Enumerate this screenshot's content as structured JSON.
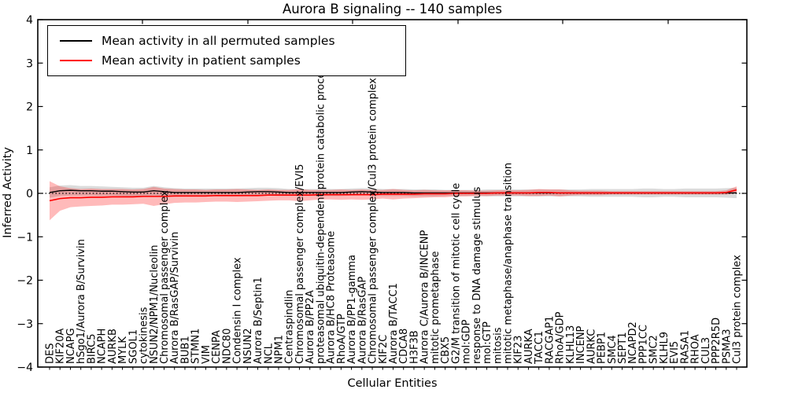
{
  "figure": {
    "title": "Aurora B signaling -- 140 samples",
    "xlabel": "Cellular Entities",
    "ylabel": "Inferred Activity"
  },
  "legend": {
    "items": [
      {
        "label": "Mean activity in all permuted samples",
        "color": "#000000"
      },
      {
        "label": "Mean activity in patient samples",
        "color": "#ff0000"
      }
    ]
  },
  "chart_data": {
    "type": "line",
    "title": "Aurora B signaling -- 140 samples",
    "xlabel": "Cellular Entities",
    "ylabel": "Inferred Activity",
    "ylim": [
      -4,
      4
    ],
    "ytick_labels": [
      "4",
      "3",
      "2",
      "1",
      "0",
      "−1",
      "−2",
      "−3",
      "−4"
    ],
    "grid": false,
    "legend_position": "upper left",
    "zero_line": {
      "color": "#000000",
      "style": "dotted",
      "value": 0
    },
    "categories": [
      "DES",
      "KIF20A",
      "NCAPG",
      "hSgo1/Aurora B/Survivin",
      "BIRC5",
      "NCAPH",
      "AURKB",
      "MYLK",
      "SGOL1",
      "cytokinesis",
      "NSUN2/NPM1/Nucleolin",
      "Chromosomal passenger complex",
      "Aurora B/RasGAP/Survivin",
      "BUB1",
      "STMN1",
      "VIM",
      "CENPA",
      "NDC80",
      "Condensin I complex",
      "NSUN2",
      "Aurora B/Septin1",
      "NCL",
      "NPM1",
      "Centraspindlin",
      "Chromosomal passenger complex/EVI5",
      "Aurora B/PP2A",
      "proteasomal ubiquitin-dependent protein catabolic process",
      "Aurora B/HC8 Proteasome",
      "RhoA/GTP",
      "Aurora B/PP1-gamma",
      "Aurora B/RasGAP",
      "Chromosomal passenger complex/Cul3 protein complex",
      "KIF2C",
      "Aurora B/TACC1",
      "CDCA8",
      "H3F3B",
      "Aurora C/Aurora B/INCENP",
      "mitotic prometaphase",
      "CBX5",
      "G2/M transition of mitotic cell cycle",
      "mol:GDP",
      "response to DNA damage stimulus",
      "mol:GTP",
      "mitosis",
      "mitotic metaphase/anaphase transition",
      "KIF23",
      "AURKA",
      "TACC1",
      "RACGAP1",
      "RhoA/GDP",
      "KLHL13",
      "INCENP",
      "AURKC",
      "PEBP1",
      "SMC4",
      "SEPT1",
      "NCAPD2",
      "PPP1CC",
      "SMC2",
      "KLHL9",
      "EVI5",
      "RASA1",
      "RHOA",
      "CUL3",
      "PPP2R5D",
      "PSMA3",
      "Cul3 protein complex"
    ],
    "series": [
      {
        "name": "Mean activity in all permuted samples",
        "color": "#000000",
        "band_color": "#000000",
        "band_opacity": 0.14,
        "values": [
          0.02,
          0.06,
          0.07,
          0.06,
          0.06,
          0.05,
          0.05,
          0.04,
          0.03,
          0.03,
          0.06,
          0.04,
          0.02,
          0.02,
          0.02,
          0.02,
          0.02,
          0.02,
          0.02,
          0.03,
          0.04,
          0.04,
          0.03,
          0.02,
          0.02,
          0.02,
          0.02,
          0.02,
          0.02,
          0.03,
          0.04,
          0.03,
          0.02,
          0.02,
          0.02,
          0.01,
          0.01,
          0.01,
          0.01,
          0.01,
          0.01,
          0.01,
          0.01,
          0.01,
          0.01,
          0.01,
          0.01,
          0.01,
          0.01,
          0.01,
          0.01,
          0.01,
          0.01,
          0.01,
          0.01,
          0.01,
          0.01,
          0.01,
          0.01,
          0.01,
          0.01,
          0.01,
          0.01,
          0.01,
          0.01,
          0.01,
          0.01
        ],
        "band_upper": [
          0.14,
          0.18,
          0.19,
          0.17,
          0.17,
          0.16,
          0.15,
          0.14,
          0.13,
          0.13,
          0.17,
          0.14,
          0.12,
          0.11,
          0.11,
          0.11,
          0.11,
          0.11,
          0.11,
          0.12,
          0.13,
          0.13,
          0.12,
          0.1,
          0.1,
          0.1,
          0.1,
          0.1,
          0.1,
          0.11,
          0.12,
          0.11,
          0.1,
          0.1,
          0.1,
          0.09,
          0.09,
          0.09,
          0.08,
          0.08,
          0.08,
          0.08,
          0.09,
          0.09,
          0.09,
          0.09,
          0.09,
          0.09,
          0.09,
          0.09,
          0.09,
          0.09,
          0.1,
          0.1,
          0.1,
          0.1,
          0.1,
          0.11,
          0.11,
          0.1,
          0.1,
          0.11,
          0.11,
          0.11,
          0.11,
          0.12,
          0.13
        ],
        "band_lower": [
          -0.1,
          -0.06,
          -0.05,
          -0.05,
          -0.05,
          -0.06,
          -0.05,
          -0.06,
          -0.07,
          -0.07,
          -0.05,
          -0.06,
          -0.08,
          -0.07,
          -0.07,
          -0.07,
          -0.07,
          -0.07,
          -0.07,
          -0.06,
          -0.05,
          -0.05,
          -0.06,
          -0.06,
          -0.06,
          -0.06,
          -0.06,
          -0.06,
          -0.06,
          -0.05,
          -0.04,
          -0.05,
          -0.06,
          -0.06,
          -0.06,
          -0.07,
          -0.07,
          -0.07,
          -0.06,
          -0.06,
          -0.06,
          -0.06,
          -0.07,
          -0.07,
          -0.07,
          -0.07,
          -0.07,
          -0.07,
          -0.07,
          -0.07,
          -0.07,
          -0.07,
          -0.08,
          -0.08,
          -0.08,
          -0.08,
          -0.08,
          -0.09,
          -0.09,
          -0.08,
          -0.08,
          -0.09,
          -0.09,
          -0.09,
          -0.09,
          -0.1,
          -0.11
        ]
      },
      {
        "name": "Mean activity in patient samples",
        "color": "#ff0000",
        "band_color": "#ff0000",
        "band_opacity": 0.27,
        "values": [
          -0.17,
          -0.12,
          -0.1,
          -0.1,
          -0.09,
          -0.09,
          -0.08,
          -0.08,
          -0.08,
          -0.07,
          -0.07,
          -0.07,
          -0.06,
          -0.06,
          -0.06,
          -0.06,
          -0.05,
          -0.05,
          -0.05,
          -0.05,
          -0.05,
          -0.04,
          -0.04,
          -0.04,
          -0.04,
          -0.04,
          -0.03,
          -0.03,
          -0.03,
          -0.03,
          -0.03,
          -0.03,
          -0.02,
          -0.02,
          -0.02,
          -0.02,
          -0.01,
          -0.01,
          -0.01,
          0.0,
          0.0,
          0.0,
          0.0,
          0.01,
          0.01,
          0.01,
          0.01,
          0.02,
          0.02,
          0.01,
          0.01,
          0.01,
          0.01,
          0.01,
          0.01,
          0.01,
          0.01,
          0.01,
          0.01,
          0.01,
          0.01,
          0.01,
          0.01,
          0.01,
          0.01,
          0.02,
          0.08
        ],
        "band_upper": [
          0.28,
          0.16,
          0.12,
          0.1,
          0.11,
          0.1,
          0.1,
          0.1,
          0.09,
          0.1,
          0.15,
          0.11,
          0.1,
          0.09,
          0.09,
          0.08,
          0.09,
          0.09,
          0.1,
          0.09,
          0.08,
          0.09,
          0.08,
          0.08,
          0.1,
          0.08,
          0.08,
          0.08,
          0.09,
          0.08,
          0.09,
          0.08,
          0.08,
          0.1,
          0.08,
          0.07,
          0.08,
          0.07,
          0.07,
          0.07,
          0.07,
          0.06,
          0.06,
          0.07,
          0.07,
          0.07,
          0.08,
          0.1,
          0.09,
          0.09,
          0.07,
          0.06,
          0.06,
          0.06,
          0.05,
          0.05,
          0.05,
          0.05,
          0.05,
          0.05,
          0.05,
          0.05,
          0.05,
          0.05,
          0.05,
          0.07,
          0.16
        ],
        "band_lower": [
          -0.62,
          -0.4,
          -0.32,
          -0.3,
          -0.29,
          -0.28,
          -0.26,
          -0.26,
          -0.25,
          -0.24,
          -0.29,
          -0.25,
          -0.22,
          -0.21,
          -0.21,
          -0.2,
          -0.19,
          -0.19,
          -0.2,
          -0.19,
          -0.18,
          -0.17,
          -0.16,
          -0.16,
          -0.18,
          -0.16,
          -0.14,
          -0.14,
          -0.15,
          -0.14,
          -0.15,
          -0.14,
          -0.12,
          -0.14,
          -0.12,
          -0.11,
          -0.1,
          -0.09,
          -0.09,
          -0.07,
          -0.07,
          -0.06,
          -0.06,
          -0.05,
          -0.05,
          -0.05,
          -0.06,
          -0.06,
          -0.05,
          -0.07,
          -0.05,
          -0.04,
          -0.04,
          -0.04,
          -0.03,
          -0.03,
          -0.03,
          -0.03,
          -0.03,
          -0.03,
          -0.03,
          -0.03,
          -0.03,
          -0.03,
          -0.03,
          -0.03,
          0.0
        ]
      }
    ]
  }
}
